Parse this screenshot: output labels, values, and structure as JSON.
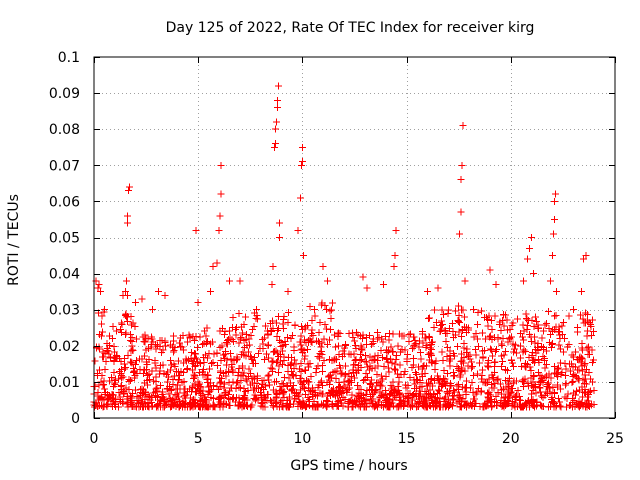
{
  "chart_data": {
    "type": "scatter",
    "title": "Day 125 of 2022, Rate Of TEC Index for receiver kirg",
    "xlabel": "GPS time / hours",
    "ylabel": "ROTI / TECUs",
    "xlim": [
      0,
      25
    ],
    "ylim": [
      0,
      0.1
    ],
    "xticks": [
      0,
      5,
      10,
      15,
      20,
      25
    ],
    "xtick_labels": [
      "0",
      "5",
      "10",
      "15",
      "20",
      "25"
    ],
    "yticks": [
      0,
      0.01,
      0.02,
      0.03,
      0.04,
      0.05,
      0.06,
      0.07,
      0.08,
      0.09,
      0.1
    ],
    "ytick_labels": [
      "0",
      "0.01",
      "0.02",
      "0.03",
      "0.04",
      "0.05",
      "0.06",
      "0.07",
      "0.08",
      "0.09",
      "0.1"
    ],
    "grid": true,
    "marker": "+",
    "color": "#ff0000",
    "series": [
      {
        "name": "ROTI",
        "x": [
          0.1,
          0.2,
          0.25,
          0.3,
          0.35,
          0.5,
          1.4,
          1.5,
          1.55,
          1.6,
          1.6,
          1.65,
          1.7,
          1.55,
          1.6,
          2.0,
          2.3,
          2.8,
          3.1,
          3.4,
          4.9,
          5.0,
          5.6,
          5.7,
          5.9,
          6.0,
          6.05,
          6.1,
          6.1,
          6.5,
          7.0,
          7.8,
          8.55,
          8.6,
          8.65,
          8.7,
          8.7,
          8.75,
          8.8,
          8.8,
          8.85,
          8.9,
          8.9,
          9.3,
          9.8,
          9.9,
          9.95,
          10.0,
          10.0,
          10.05,
          11.0,
          11.2,
          12.9,
          13.1,
          13.9,
          14.4,
          14.45,
          14.5,
          16.0,
          16.5,
          17.5,
          17.55,
          17.6,
          17.6,
          17.65,
          17.7,
          17.8,
          18.2,
          19.0,
          19.3,
          20.6,
          20.8,
          20.9,
          21.0,
          21.1,
          21.9,
          22.0,
          22.05,
          22.1,
          22.1,
          22.15,
          22.2,
          23.0,
          23.4,
          23.5,
          23.6
        ],
        "y": [
          0.038,
          0.036,
          0.037,
          0.035,
          0.026,
          0.03,
          0.034,
          0.035,
          0.038,
          0.056,
          0.054,
          0.063,
          0.064,
          0.028,
          0.034,
          0.032,
          0.033,
          0.03,
          0.035,
          0.034,
          0.052,
          0.032,
          0.035,
          0.042,
          0.043,
          0.052,
          0.056,
          0.062,
          0.07,
          0.038,
          0.038,
          0.03,
          0.037,
          0.042,
          0.075,
          0.076,
          0.08,
          0.082,
          0.086,
          0.088,
          0.092,
          0.054,
          0.05,
          0.035,
          0.052,
          0.061,
          0.07,
          0.071,
          0.075,
          0.045,
          0.042,
          0.038,
          0.039,
          0.036,
          0.037,
          0.042,
          0.045,
          0.052,
          0.035,
          0.036,
          0.031,
          0.051,
          0.057,
          0.066,
          0.07,
          0.081,
          0.038,
          0.03,
          0.041,
          0.037,
          0.038,
          0.044,
          0.047,
          0.05,
          0.04,
          0.038,
          0.045,
          0.051,
          0.055,
          0.06,
          0.062,
          0.035,
          0.03,
          0.035,
          0.044,
          0.045
        ]
      }
    ],
    "dense_band": {
      "description": "dense cloud of ROTI values across the whole day",
      "x_range": [
        0,
        24
      ],
      "ranges": [
        {
          "x": [
            0,
            2
          ],
          "y": [
            0.003,
            0.03
          ]
        },
        {
          "x": [
            2,
            5
          ],
          "y": [
            0.003,
            0.023
          ]
        },
        {
          "x": [
            5,
            6.5
          ],
          "y": [
            0.003,
            0.025
          ]
        },
        {
          "x": [
            6.5,
            10
          ],
          "y": [
            0.003,
            0.03
          ]
        },
        {
          "x": [
            10,
            11.5
          ],
          "y": [
            0.003,
            0.032
          ]
        },
        {
          "x": [
            11.5,
            16
          ],
          "y": [
            0.003,
            0.024
          ]
        },
        {
          "x": [
            16,
            19.5
          ],
          "y": [
            0.003,
            0.03
          ]
        },
        {
          "x": [
            19.5,
            24
          ],
          "y": [
            0.003,
            0.03
          ]
        }
      ]
    }
  }
}
